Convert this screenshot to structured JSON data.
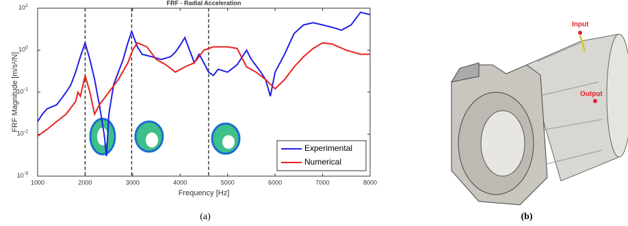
{
  "chart_data": {
    "type": "line",
    "title": "FRF - Radial Acceleration",
    "x_label": "Frequency [Hz]",
    "y_label": "FRF Magnitude [m/s²/N]",
    "log_y": true,
    "xlim": [
      1000,
      8000
    ],
    "xticks": [
      1000,
      2000,
      3000,
      4000,
      5000,
      6000,
      7000,
      8000
    ],
    "ylim": [
      0.001,
      10
    ],
    "yticks": [
      {
        "value": 0.001,
        "label": "10",
        "exponent": "-3"
      },
      {
        "value": 0.01,
        "label": "10",
        "exponent": "-2"
      },
      {
        "value": 0.1,
        "label": "10",
        "exponent": "-1"
      },
      {
        "value": 1,
        "label": "10",
        "exponent": "0"
      },
      {
        "value": 10,
        "label": "10",
        "exponent": "1"
      }
    ],
    "grid": false,
    "legend": "lower right",
    "vlines": [
      2000,
      2980,
      4600
    ],
    "series": [
      {
        "name": "Experimental",
        "color": "#1f1fe6",
        "x": [
          1000,
          1100,
          1200,
          1300,
          1400,
          1500,
          1600,
          1700,
          1800,
          1900,
          2000,
          2100,
          2200,
          2300,
          2400,
          2450,
          2500,
          2600,
          2700,
          2800,
          2900,
          2980,
          3100,
          3200,
          3400,
          3600,
          3800,
          3900,
          4000,
          4100,
          4200,
          4300,
          4400,
          4500,
          4600,
          4700,
          4800,
          5000,
          5200,
          5400,
          5500,
          5700,
          5800,
          5900,
          6000,
          6200,
          6400,
          6600,
          6800,
          7000,
          7200,
          7400,
          7600,
          7800,
          8000
        ],
        "values": [
          0.02,
          0.03,
          0.04,
          0.045,
          0.05,
          0.07,
          0.1,
          0.15,
          0.3,
          0.7,
          1.5,
          0.6,
          0.2,
          0.05,
          0.01,
          0.003,
          0.03,
          0.15,
          0.3,
          0.6,
          1.5,
          2.8,
          1.2,
          0.8,
          0.7,
          0.6,
          0.7,
          0.9,
          1.3,
          2.0,
          1.0,
          0.5,
          0.8,
          0.5,
          0.3,
          0.25,
          0.35,
          0.3,
          0.45,
          1.0,
          0.6,
          0.3,
          0.2,
          0.08,
          0.3,
          0.8,
          2.5,
          4.0,
          4.5,
          4.0,
          3.5,
          3.0,
          4.0,
          8.0,
          7.0
        ]
      },
      {
        "name": "Numerical",
        "color": "#e82020",
        "x": [
          1000,
          1200,
          1400,
          1600,
          1800,
          1850,
          1900,
          2000,
          2100,
          2200,
          2300,
          2500,
          2700,
          2900,
          3000,
          3100,
          3300,
          3500,
          3700,
          3900,
          4100,
          4300,
          4500,
          4700,
          5000,
          5200,
          5400,
          5600,
          5800,
          6000,
          6200,
          6400,
          6600,
          6800,
          7000,
          7200,
          7500,
          7800,
          8000
        ],
        "values": [
          0.009,
          0.013,
          0.02,
          0.03,
          0.06,
          0.1,
          0.08,
          0.25,
          0.1,
          0.03,
          0.05,
          0.1,
          0.2,
          0.5,
          1.0,
          1.5,
          1.2,
          0.6,
          0.45,
          0.3,
          0.4,
          0.5,
          1.0,
          1.2,
          1.2,
          1.1,
          0.4,
          0.3,
          0.2,
          0.12,
          0.2,
          0.4,
          0.7,
          1.1,
          1.5,
          1.4,
          1.0,
          0.8,
          0.8
        ]
      }
    ]
  },
  "panels": {
    "left": "(a)",
    "right": "(b)"
  },
  "model": {
    "input": "Input",
    "output": "Output"
  }
}
